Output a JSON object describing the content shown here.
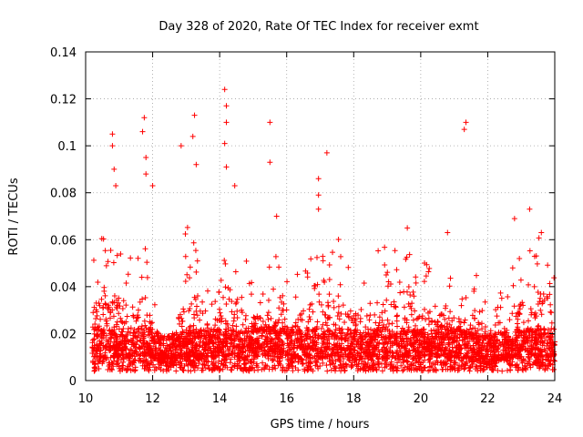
{
  "chart_data": {
    "type": "scatter",
    "title": "Day 328 of 2020, Rate Of TEC Index for receiver exmt",
    "xlabel": "GPS time / hours",
    "ylabel": "ROTI / TECUs",
    "xlim": [
      10,
      24
    ],
    "ylim": [
      0,
      0.14
    ],
    "x_ticks": [
      10,
      12,
      14,
      16,
      18,
      20,
      22,
      24
    ],
    "x_tick_labels": [
      "10",
      "12",
      "14",
      "16",
      "18",
      "20",
      "22",
      "24"
    ],
    "y_ticks": [
      0,
      0.02,
      0.04,
      0.06,
      0.08,
      0.1,
      0.12,
      0.14
    ],
    "y_tick_labels": [
      "0",
      "0.02",
      "0.04",
      "0.06",
      "0.08",
      "0.1",
      "0.12",
      "0.14"
    ],
    "grid": true,
    "marker": "plus",
    "color": "#ff0000",
    "series": [
      {
        "name": "ROTI",
        "notable_points": [
          {
            "x": 10.8,
            "y": 0.105
          },
          {
            "x": 10.8,
            "y": 0.1
          },
          {
            "x": 10.85,
            "y": 0.09
          },
          {
            "x": 11.75,
            "y": 0.112
          },
          {
            "x": 11.7,
            "y": 0.106
          },
          {
            "x": 11.8,
            "y": 0.095
          },
          {
            "x": 11.8,
            "y": 0.088
          },
          {
            "x": 12.85,
            "y": 0.1
          },
          {
            "x": 13.25,
            "y": 0.113
          },
          {
            "x": 13.2,
            "y": 0.104
          },
          {
            "x": 13.3,
            "y": 0.092
          },
          {
            "x": 14.15,
            "y": 0.124
          },
          {
            "x": 14.2,
            "y": 0.117
          },
          {
            "x": 14.2,
            "y": 0.11
          },
          {
            "x": 14.15,
            "y": 0.101
          },
          {
            "x": 14.2,
            "y": 0.091
          },
          {
            "x": 15.5,
            "y": 0.11
          },
          {
            "x": 15.5,
            "y": 0.093
          },
          {
            "x": 16.95,
            "y": 0.086
          },
          {
            "x": 16.95,
            "y": 0.079
          },
          {
            "x": 16.95,
            "y": 0.073
          },
          {
            "x": 17.2,
            "y": 0.097
          },
          {
            "x": 21.35,
            "y": 0.11
          },
          {
            "x": 21.3,
            "y": 0.107
          },
          {
            "x": 23.25,
            "y": 0.073
          },
          {
            "x": 22.8,
            "y": 0.069
          },
          {
            "x": 10.9,
            "y": 0.083
          },
          {
            "x": 12.0,
            "y": 0.083
          },
          {
            "x": 14.45,
            "y": 0.083
          },
          {
            "x": 15.7,
            "y": 0.07
          },
          {
            "x": 19.6,
            "y": 0.065
          },
          {
            "x": 20.8,
            "y": 0.063
          },
          {
            "x": 23.6,
            "y": 0.063
          }
        ],
        "bulk_envelope": [
          {
            "x": 10.2,
            "baseline": 0.01,
            "peak": 0.052
          },
          {
            "x": 10.6,
            "baseline": 0.01,
            "peak": 0.066
          },
          {
            "x": 11.0,
            "baseline": 0.01,
            "peak": 0.058
          },
          {
            "x": 11.4,
            "baseline": 0.01,
            "peak": 0.055
          },
          {
            "x": 11.8,
            "baseline": 0.012,
            "peak": 0.06
          },
          {
            "x": 12.2,
            "baseline": 0.008,
            "peak": 0.02
          },
          {
            "x": 12.6,
            "baseline": 0.008,
            "peak": 0.022
          },
          {
            "x": 13.0,
            "baseline": 0.01,
            "peak": 0.068
          },
          {
            "x": 13.4,
            "baseline": 0.01,
            "peak": 0.062
          },
          {
            "x": 13.8,
            "baseline": 0.01,
            "peak": 0.035
          },
          {
            "x": 14.2,
            "baseline": 0.01,
            "peak": 0.068
          },
          {
            "x": 14.6,
            "baseline": 0.01,
            "peak": 0.06
          },
          {
            "x": 15.0,
            "baseline": 0.01,
            "peak": 0.045
          },
          {
            "x": 15.4,
            "baseline": 0.012,
            "peak": 0.05
          },
          {
            "x": 15.8,
            "baseline": 0.012,
            "peak": 0.066
          },
          {
            "x": 16.2,
            "baseline": 0.01,
            "peak": 0.04
          },
          {
            "x": 16.6,
            "baseline": 0.01,
            "peak": 0.058
          },
          {
            "x": 17.0,
            "baseline": 0.01,
            "peak": 0.06
          },
          {
            "x": 17.4,
            "baseline": 0.01,
            "peak": 0.066
          },
          {
            "x": 17.8,
            "baseline": 0.01,
            "peak": 0.05
          },
          {
            "x": 18.2,
            "baseline": 0.01,
            "peak": 0.05
          },
          {
            "x": 18.6,
            "baseline": 0.01,
            "peak": 0.055
          },
          {
            "x": 19.0,
            "baseline": 0.01,
            "peak": 0.06
          },
          {
            "x": 19.4,
            "baseline": 0.01,
            "peak": 0.055
          },
          {
            "x": 19.8,
            "baseline": 0.01,
            "peak": 0.055
          },
          {
            "x": 20.2,
            "baseline": 0.01,
            "peak": 0.05
          },
          {
            "x": 20.6,
            "baseline": 0.01,
            "peak": 0.05
          },
          {
            "x": 21.0,
            "baseline": 0.01,
            "peak": 0.045
          },
          {
            "x": 21.4,
            "baseline": 0.01,
            "peak": 0.055
          },
          {
            "x": 21.8,
            "baseline": 0.008,
            "peak": 0.04
          },
          {
            "x": 22.2,
            "baseline": 0.008,
            "peak": 0.035
          },
          {
            "x": 22.6,
            "baseline": 0.01,
            "peak": 0.045
          },
          {
            "x": 23.0,
            "baseline": 0.01,
            "peak": 0.055
          },
          {
            "x": 23.4,
            "baseline": 0.01,
            "peak": 0.065
          },
          {
            "x": 23.8,
            "baseline": 0.01,
            "peak": 0.06
          },
          {
            "x": 24.0,
            "baseline": 0.01,
            "peak": 0.045
          }
        ]
      }
    ]
  }
}
